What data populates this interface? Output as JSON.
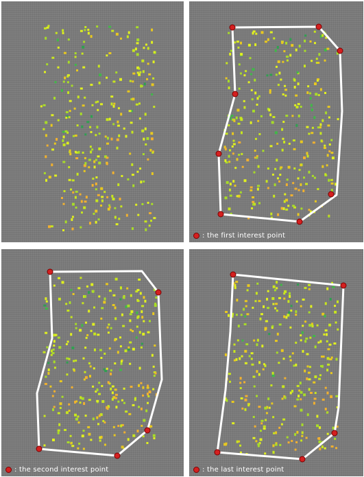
{
  "panels": [
    {
      "caption": ""
    },
    {
      "caption": ": the first interest point"
    },
    {
      "caption": ": the second interest point"
    },
    {
      "caption": ": the last interest point"
    }
  ],
  "colors": {
    "background": "#7a7a7a",
    "boundary": "#ffffff",
    "interest_point": "#d42020",
    "particles": [
      "#e0f020",
      "#c8e61e",
      "#a8dc28",
      "#f0b030",
      "#e8c820",
      "#40b848",
      "#30a050"
    ]
  }
}
